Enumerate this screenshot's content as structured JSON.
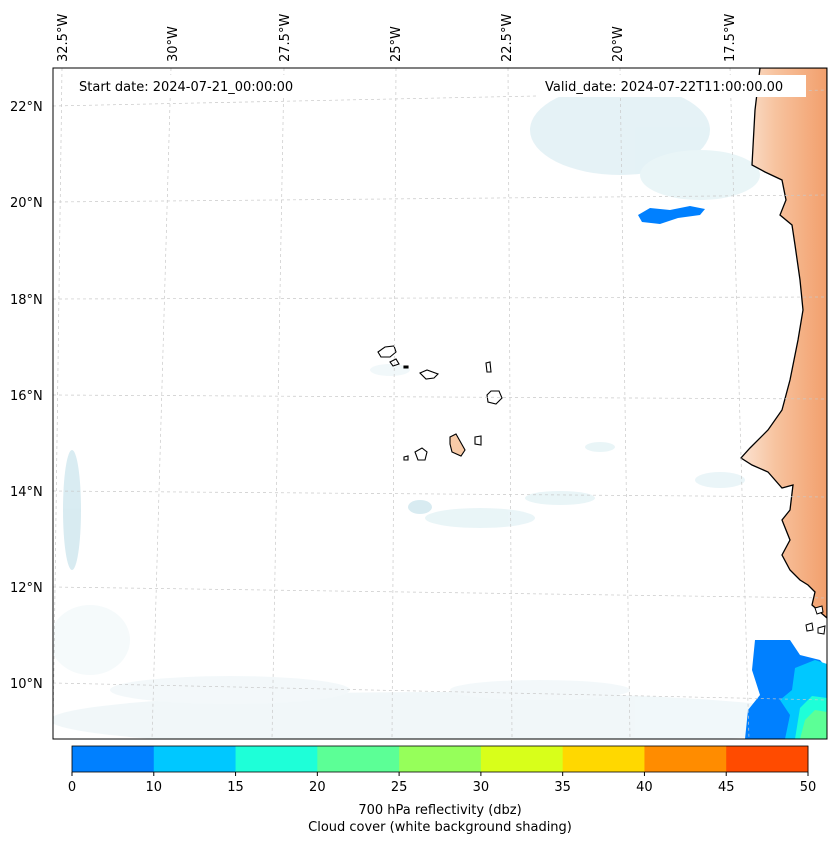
{
  "map": {
    "start_date_label": "Start date: 2024-07-21_00:00:00",
    "valid_date_label": "Valid_date: 2024-07-22T11:00:00.00",
    "lon_labels": [
      "32.5°W",
      "30°W",
      "27.5°W",
      "25°W",
      "22.5°W",
      "20°W",
      "17.5°W"
    ],
    "lat_labels": [
      "22°N",
      "20°N",
      "18°N",
      "16°N",
      "14°N",
      "12°N",
      "10°N"
    ],
    "land_fill_color": "#f4b083",
    "coast_color": "#000000",
    "cloud_color": "#cfe8ef"
  },
  "colorbar": {
    "ticks": [
      "0",
      "10",
      "15",
      "20",
      "25",
      "30",
      "35",
      "40",
      "45",
      "50"
    ],
    "colors": [
      "#0080ff",
      "#00c8ff",
      "#1effd8",
      "#5cff96",
      "#96ff5a",
      "#d8ff1a",
      "#ffd800",
      "#ff8c00",
      "#ff4b00"
    ],
    "label_line1": "700 hPa reflectivity (dbz)",
    "label_line2": "Cloud cover (white background shading)"
  }
}
